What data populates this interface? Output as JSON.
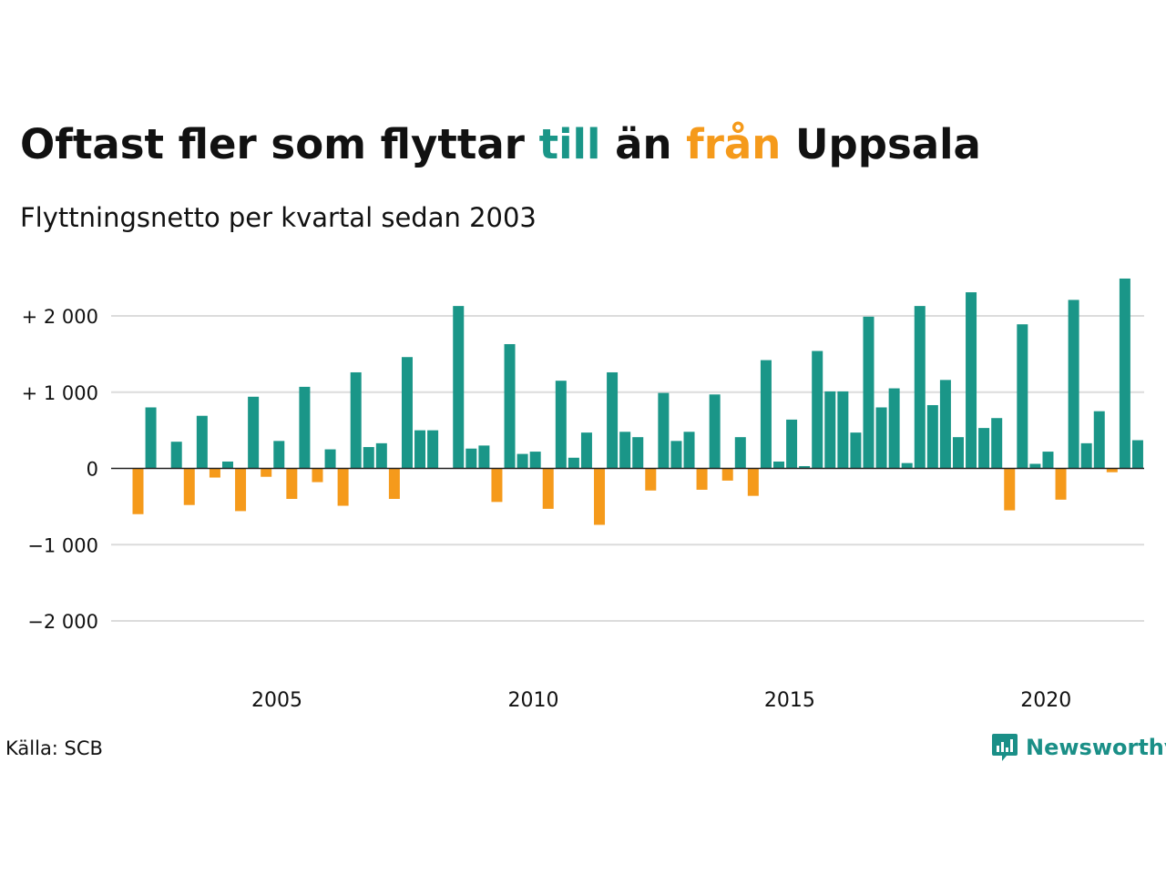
{
  "title": {
    "part1": "Oftast fler som flyttar ",
    "part2": "till",
    "part3": " än ",
    "part4": "från",
    "part5": " Uppsala"
  },
  "subtitle": "Flyttningsnetto per kvartal sedan 2003",
  "source": "Källa: SCB",
  "logo_text": "Newsworthy",
  "colors": {
    "positive": "#1a9688",
    "negative": "#f59a1b",
    "grid": "#dcdcdc",
    "text": "#111111"
  },
  "chart_data": {
    "type": "bar",
    "x_start": "2003 Q1",
    "values": [
      -600,
      800,
      0,
      350,
      -480,
      690,
      -120,
      90,
      -560,
      940,
      -110,
      360,
      -400,
      1070,
      -180,
      250,
      -490,
      1260,
      280,
      330,
      -400,
      1460,
      500,
      500,
      0,
      2130,
      260,
      300,
      -440,
      1630,
      190,
      220,
      -530,
      1150,
      140,
      470,
      -740,
      1260,
      480,
      410,
      -290,
      990,
      360,
      480,
      -280,
      970,
      -160,
      410,
      -360,
      1420,
      90,
      640,
      30,
      1540,
      1010,
      1010,
      470,
      1990,
      800,
      1050,
      70,
      2130,
      830,
      1160,
      410,
      2310,
      530,
      660,
      -550,
      1890,
      60,
      220,
      -410,
      2210,
      330,
      750,
      -50,
      2490,
      370
    ],
    "x_ticks": [
      "2005",
      "2010",
      "2015",
      "2020"
    ],
    "y_ticks": [
      "+ 2 000",
      "+ 1 000",
      "0",
      "−1 000",
      "−2 000"
    ],
    "ylim": [
      -2500,
      2600
    ],
    "grid": true,
    "legend": "none"
  }
}
